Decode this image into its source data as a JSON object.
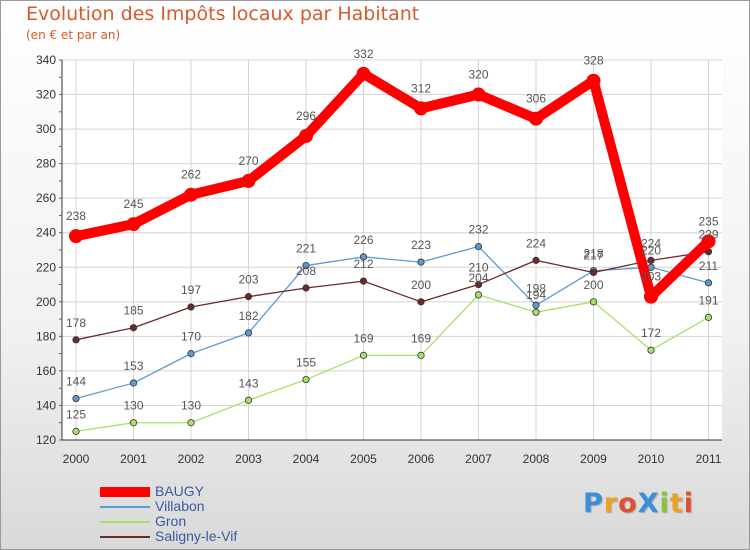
{
  "chart_data": {
    "type": "line",
    "title": "Evolution des Impôts locaux par Habitant",
    "subtitle": "(en € et par an)",
    "categories": [
      "2000",
      "2001",
      "2002",
      "2003",
      "2004",
      "2005",
      "2006",
      "2007",
      "2008",
      "2009",
      "2010",
      "2011"
    ],
    "ylim": [
      120,
      340
    ],
    "yticks": [
      120,
      140,
      160,
      180,
      200,
      220,
      240,
      260,
      280,
      300,
      320,
      340
    ],
    "grid": true,
    "legend_position": "bottom-left",
    "series": [
      {
        "name": "BAUGY",
        "color": "#ff0000",
        "values": [
          238,
          245,
          262,
          270,
          296,
          332,
          312,
          320,
          306,
          328,
          203,
          235
        ]
      },
      {
        "name": "Villabon",
        "color": "#5b9bd5",
        "values": [
          144,
          153,
          170,
          182,
          221,
          226,
          223,
          232,
          198,
          218,
          220,
          211
        ]
      },
      {
        "name": "Gron",
        "color": "#a8e06a",
        "values": [
          125,
          130,
          130,
          143,
          155,
          169,
          169,
          204,
          194,
          200,
          172,
          191
        ]
      },
      {
        "name": "Saligny-le-Vif",
        "color": "#6b2a2a",
        "values": [
          178,
          185,
          197,
          203,
          208,
          212,
          200,
          210,
          224,
          217,
          224,
          229
        ]
      }
    ]
  },
  "logo": {
    "text": "ProXiti",
    "colors": [
      "#3a8fd8",
      "#f0a020",
      "#e05030",
      "#3a8fd8",
      "#8ac43a",
      "#f0a020",
      "#e05030"
    ]
  }
}
